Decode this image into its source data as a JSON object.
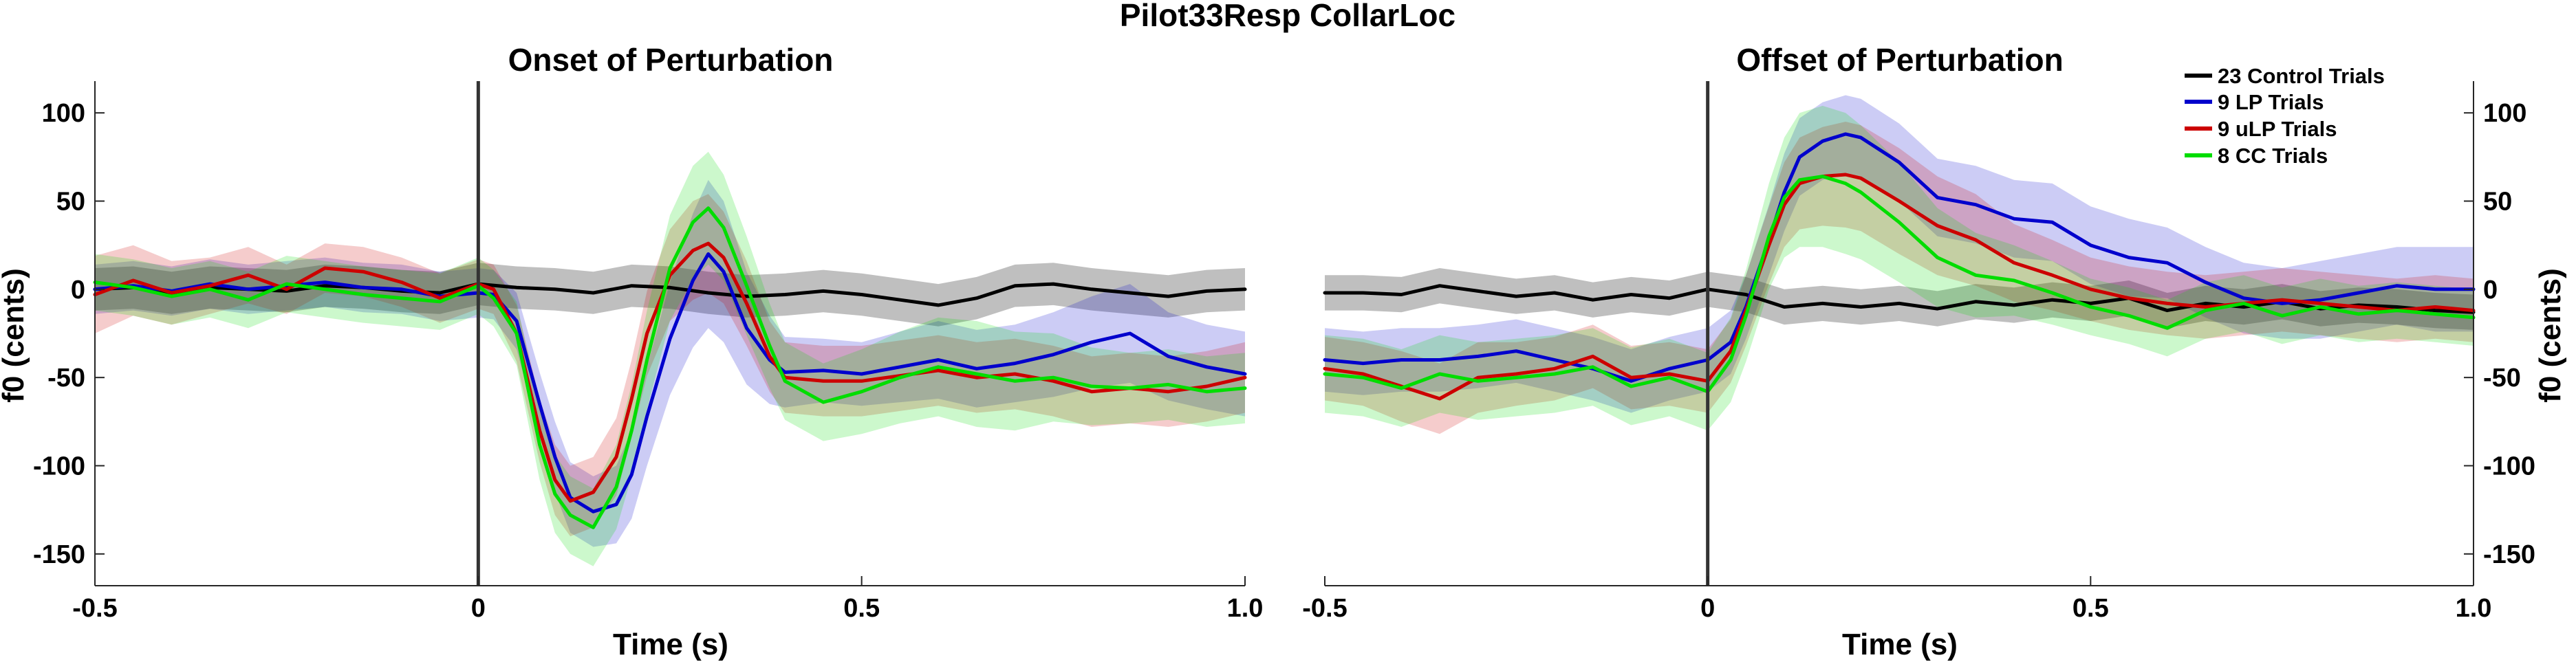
{
  "chart_data": {
    "type": "line",
    "title": "Pilot33Resp CollarLoc",
    "colors": {
      "control": "#000000",
      "lp": "#0000cc",
      "ulp": "#cc0000",
      "cc": "#00dd00"
    },
    "legend": {
      "placement": "top-right of right panel",
      "entries": [
        "23 Control Trials",
        "9 LP Trials",
        "9 uLP Trials",
        "8 CC Trials"
      ]
    },
    "panels": [
      {
        "title": "Onset of Perturbation",
        "xlabel": "Time (s)",
        "ylabel": "f0 (cents)",
        "ylabel_side": "left",
        "xlim": [
          -0.5,
          1.0
        ],
        "ylim": [
          -168,
          118
        ],
        "xticks": [
          -0.5,
          0,
          0.5,
          1.0
        ],
        "xtick_labels": [
          "-0.5",
          "0",
          "0.5",
          "1.0"
        ],
        "yticks": [
          100,
          50,
          0,
          -50,
          -100,
          -150
        ],
        "ytick_labels": [
          "100",
          "50",
          "0",
          "-50",
          "-100",
          "-150"
        ],
        "marker_x": 0,
        "series": [
          {
            "key": "control",
            "x": [
              -0.5,
              -0.45,
              -0.4,
              -0.35,
              -0.3,
              -0.25,
              -0.2,
              -0.15,
              -0.1,
              -0.05,
              0,
              0.05,
              0.1,
              0.15,
              0.2,
              0.25,
              0.3,
              0.35,
              0.4,
              0.45,
              0.5,
              0.55,
              0.6,
              0.65,
              0.7,
              0.75,
              0.8,
              0.85,
              0.9,
              0.95,
              1.0
            ],
            "y": [
              0,
              1,
              -2,
              1,
              0,
              -1,
              2,
              1,
              -1,
              -2,
              3,
              1,
              0,
              -2,
              2,
              1,
              -2,
              -4,
              -3,
              -1,
              -3,
              -6,
              -9,
              -5,
              2,
              3,
              0,
              -2,
              -4,
              -1,
              0
            ],
            "band": [
              12,
              12,
              12,
              12,
              12,
              12,
              12,
              12,
              12,
              12,
              12,
              12,
              12,
              12,
              12,
              12,
              12,
              12,
              12,
              12,
              12,
              12,
              12,
              12,
              12,
              12,
              12,
              12,
              12,
              12,
              12
            ]
          },
          {
            "key": "lp",
            "x": [
              -0.5,
              -0.45,
              -0.4,
              -0.35,
              -0.3,
              -0.25,
              -0.2,
              -0.15,
              -0.1,
              -0.05,
              0,
              0.02,
              0.05,
              0.08,
              0.1,
              0.12,
              0.15,
              0.18,
              0.2,
              0.22,
              0.25,
              0.28,
              0.3,
              0.32,
              0.35,
              0.38,
              0.4,
              0.45,
              0.5,
              0.55,
              0.6,
              0.65,
              0.7,
              0.75,
              0.8,
              0.85,
              0.9,
              0.95,
              1.0
            ],
            "y": [
              0,
              2,
              -1,
              3,
              0,
              2,
              4,
              1,
              0,
              -4,
              -2,
              -3,
              -18,
              -65,
              -95,
              -118,
              -126,
              -122,
              -105,
              -72,
              -28,
              5,
              20,
              10,
              -22,
              -40,
              -47,
              -46,
              -48,
              -44,
              -40,
              -45,
              -42,
              -37,
              -30,
              -25,
              -38,
              -44,
              -48
            ],
            "band": [
              14,
              14,
              14,
              14,
              14,
              14,
              14,
              14,
              14,
              14,
              14,
              14,
              16,
              18,
              20,
              20,
              20,
              22,
              25,
              28,
              32,
              38,
              42,
              40,
              32,
              25,
              20,
              18,
              18,
              20,
              22,
              22,
              22,
              24,
              26,
              28,
              25,
              24,
              24
            ]
          },
          {
            "key": "ulp",
            "x": [
              -0.5,
              -0.45,
              -0.4,
              -0.35,
              -0.3,
              -0.25,
              -0.2,
              -0.15,
              -0.1,
              -0.05,
              0,
              0.02,
              0.05,
              0.08,
              0.1,
              0.12,
              0.15,
              0.18,
              0.2,
              0.22,
              0.25,
              0.28,
              0.3,
              0.32,
              0.35,
              0.38,
              0.4,
              0.45,
              0.5,
              0.55,
              0.6,
              0.65,
              0.7,
              0.75,
              0.8,
              0.85,
              0.9,
              0.95,
              1.0
            ],
            "y": [
              -3,
              5,
              -2,
              2,
              8,
              0,
              12,
              10,
              4,
              -5,
              3,
              0,
              -25,
              -80,
              -108,
              -120,
              -115,
              -95,
              -62,
              -25,
              8,
              22,
              26,
              18,
              -8,
              -38,
              -50,
              -52,
              -52,
              -49,
              -46,
              -50,
              -48,
              -52,
              -58,
              -56,
              -58,
              -55,
              -50
            ],
            "band": [
              22,
              20,
              18,
              16,
              16,
              14,
              14,
              14,
              14,
              14,
              14,
              14,
              16,
              18,
              20,
              20,
              20,
              22,
              22,
              24,
              26,
              28,
              28,
              26,
              24,
              20,
              20,
              20,
              20,
              20,
              20,
              20,
              20,
              20,
              20,
              20,
              20,
              20,
              20
            ]
          },
          {
            "key": "cc",
            "x": [
              -0.5,
              -0.45,
              -0.4,
              -0.35,
              -0.3,
              -0.25,
              -0.2,
              -0.15,
              -0.1,
              -0.05,
              0,
              0.02,
              0.05,
              0.08,
              0.1,
              0.12,
              0.15,
              0.18,
              0.2,
              0.22,
              0.25,
              0.28,
              0.3,
              0.32,
              0.35,
              0.38,
              0.4,
              0.45,
              0.5,
              0.55,
              0.6,
              0.65,
              0.7,
              0.75,
              0.8,
              0.85,
              0.9,
              0.95,
              1.0
            ],
            "y": [
              4,
              1,
              -4,
              0,
              -6,
              3,
              0,
              -3,
              -5,
              -7,
              2,
              -5,
              -25,
              -88,
              -116,
              -128,
              -135,
              -112,
              -80,
              -40,
              12,
              38,
              46,
              35,
              2,
              -32,
              -52,
              -64,
              -58,
              -50,
              -44,
              -48,
              -52,
              -50,
              -55,
              -56,
              -54,
              -58,
              -56
            ],
            "band": [
              16,
              16,
              16,
              16,
              16,
              16,
              16,
              16,
              16,
              16,
              16,
              16,
              18,
              20,
              22,
              22,
              22,
              24,
              26,
              28,
              30,
              32,
              32,
              30,
              28,
              24,
              22,
              22,
              24,
              26,
              28,
              30,
              28,
              25,
              22,
              20,
              20,
              20,
              20
            ]
          }
        ]
      },
      {
        "title": "Offset of Perturbation",
        "xlabel": "Time (s)",
        "ylabel": "f0 (cents)",
        "ylabel_side": "right",
        "xlim": [
          -0.5,
          1.0
        ],
        "ylim": [
          -168,
          118
        ],
        "xticks": [
          -0.5,
          0,
          0.5,
          1.0
        ],
        "xtick_labels": [
          "-0.5",
          "0",
          "0.5",
          "1.0"
        ],
        "yticks": [
          100,
          50,
          0,
          -50,
          -100,
          -150
        ],
        "ytick_labels": [
          "100",
          "50",
          "0",
          "-50",
          "-100",
          "-150"
        ],
        "marker_x": 0,
        "series": [
          {
            "key": "control",
            "x": [
              -0.5,
              -0.45,
              -0.4,
              -0.35,
              -0.3,
              -0.25,
              -0.2,
              -0.15,
              -0.1,
              -0.05,
              0,
              0.05,
              0.1,
              0.15,
              0.2,
              0.25,
              0.3,
              0.35,
              0.4,
              0.45,
              0.5,
              0.55,
              0.6,
              0.65,
              0.7,
              0.75,
              0.8,
              0.85,
              0.9,
              0.95,
              1.0
            ],
            "y": [
              -2,
              -2,
              -3,
              2,
              -1,
              -4,
              -2,
              -6,
              -3,
              -5,
              0,
              -3,
              -10,
              -8,
              -10,
              -8,
              -11,
              -7,
              -9,
              -6,
              -8,
              -5,
              -12,
              -8,
              -10,
              -7,
              -11,
              -9,
              -10,
              -12,
              -13
            ],
            "band": [
              10,
              10,
              10,
              10,
              10,
              10,
              10,
              10,
              10,
              10,
              10,
              10,
              10,
              10,
              10,
              10,
              10,
              10,
              10,
              10,
              10,
              10,
              10,
              10,
              10,
              10,
              10,
              10,
              10,
              10,
              10
            ]
          },
          {
            "key": "lp",
            "x": [
              -0.5,
              -0.45,
              -0.4,
              -0.35,
              -0.3,
              -0.25,
              -0.2,
              -0.15,
              -0.1,
              -0.05,
              0,
              0.03,
              0.05,
              0.08,
              0.1,
              0.12,
              0.15,
              0.18,
              0.2,
              0.25,
              0.3,
              0.35,
              0.4,
              0.45,
              0.5,
              0.55,
              0.6,
              0.65,
              0.7,
              0.75,
              0.8,
              0.85,
              0.9,
              0.95,
              1.0
            ],
            "y": [
              -40,
              -42,
              -40,
              -40,
              -38,
              -35,
              -40,
              -45,
              -52,
              -45,
              -40,
              -30,
              -10,
              28,
              55,
              75,
              84,
              88,
              86,
              72,
              52,
              48,
              40,
              38,
              25,
              18,
              15,
              4,
              -5,
              -8,
              -6,
              -2,
              2,
              0,
              0
            ],
            "band": [
              18,
              18,
              18,
              18,
              18,
              18,
              18,
              18,
              18,
              18,
              18,
              18,
              18,
              20,
              22,
              22,
              22,
              22,
              22,
              22,
              22,
              22,
              22,
              22,
              22,
              22,
              20,
              20,
              20,
              20,
              22,
              22,
              22,
              24,
              24
            ]
          },
          {
            "key": "ulp",
            "x": [
              -0.5,
              -0.45,
              -0.4,
              -0.35,
              -0.3,
              -0.25,
              -0.2,
              -0.15,
              -0.1,
              -0.05,
              0,
              0.03,
              0.05,
              0.08,
              0.1,
              0.12,
              0.15,
              0.18,
              0.2,
              0.25,
              0.3,
              0.35,
              0.4,
              0.45,
              0.5,
              0.55,
              0.6,
              0.65,
              0.7,
              0.75,
              0.8,
              0.85,
              0.9,
              0.95,
              1.0
            ],
            "y": [
              -45,
              -48,
              -55,
              -62,
              -50,
              -48,
              -45,
              -38,
              -50,
              -48,
              -52,
              -35,
              -12,
              25,
              48,
              60,
              64,
              65,
              63,
              50,
              36,
              28,
              15,
              8,
              0,
              -5,
              -8,
              -10,
              -8,
              -6,
              -8,
              -10,
              -12,
              -10,
              -12
            ],
            "band": [
              18,
              18,
              20,
              20,
              20,
              18,
              18,
              18,
              18,
              18,
              18,
              18,
              20,
              22,
              24,
              26,
              28,
              30,
              30,
              30,
              28,
              26,
              22,
              20,
              18,
              18,
              18,
              18,
              18,
              18,
              18,
              18,
              18,
              18,
              18
            ]
          },
          {
            "key": "cc",
            "x": [
              -0.5,
              -0.45,
              -0.4,
              -0.35,
              -0.3,
              -0.25,
              -0.2,
              -0.15,
              -0.1,
              -0.05,
              0,
              0.03,
              0.05,
              0.08,
              0.1,
              0.12,
              0.15,
              0.18,
              0.2,
              0.25,
              0.3,
              0.35,
              0.4,
              0.45,
              0.5,
              0.55,
              0.6,
              0.65,
              0.7,
              0.75,
              0.8,
              0.85,
              0.9,
              0.95,
              1.0
            ],
            "y": [
              -48,
              -50,
              -56,
              -48,
              -52,
              -50,
              -48,
              -44,
              -55,
              -50,
              -58,
              -40,
              -15,
              30,
              52,
              62,
              64,
              60,
              55,
              38,
              18,
              8,
              5,
              -2,
              -10,
              -15,
              -22,
              -12,
              -8,
              -15,
              -10,
              -14,
              -12,
              -14,
              -16
            ],
            "band": [
              22,
              22,
              22,
              22,
              22,
              22,
              22,
              22,
              22,
              22,
              22,
              24,
              26,
              30,
              34,
              38,
              40,
              40,
              38,
              34,
              28,
              24,
              20,
              18,
              16,
              16,
              16,
              16,
              16,
              16,
              16,
              16,
              16,
              16,
              16
            ]
          }
        ]
      }
    ]
  }
}
